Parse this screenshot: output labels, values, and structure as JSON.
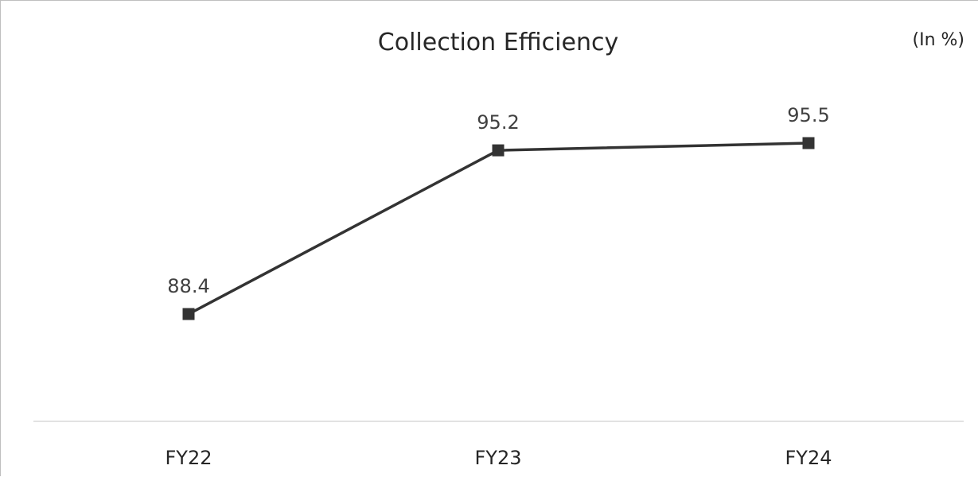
{
  "chart_data": {
    "type": "line",
    "title": "Collection Efficiency",
    "unit_note": "(In %)",
    "categories": [
      "FY22",
      "FY23",
      "FY24"
    ],
    "series": [
      {
        "values": [
          88.4,
          95.2,
          95.5
        ],
        "color": "#333333",
        "marker": "square"
      }
    ],
    "data_labels": [
      "88.4",
      "95.2",
      "95.5"
    ],
    "ylim": [
      80,
      100
    ],
    "y_axis_visible": false,
    "grid": false,
    "legend": "none",
    "baseline_color": "#d9d9d9"
  }
}
